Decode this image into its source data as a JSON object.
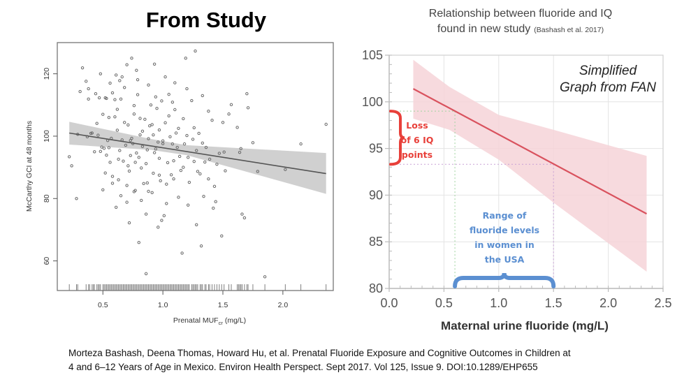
{
  "left_title": "From Study",
  "right_title": {
    "line1": "Relationship between fluoride and IQ",
    "line2_main": "found in new study",
    "line2_cite": "(Bashash et al. 2017)"
  },
  "annotations": {
    "simplified_line1": "Simplified",
    "simplified_line2": "Graph from FAN",
    "loss_lines": [
      "Loss",
      "of 6 IQ",
      "points"
    ],
    "range_lines": [
      "Range of",
      "fluoride levels",
      "in women in",
      "the USA"
    ]
  },
  "citation": {
    "line1": "Morteza Bashash, Deena Thomas, Howard Hu, et al. Prenatal Fluoride Exposure and Cognitive Outcomes in Children at",
    "line2": "4 and 6–12 Years of Age in Mexico. Environ Health Perspect. Sept 2017. Vol 125, Issue 9. DOI:10.1289/EHP655"
  },
  "colors": {
    "scatter_point": "#6b6b6b",
    "band_gray": "#c8c8c8",
    "fit_gray": "#555555",
    "band_pink": "#f6d3d8",
    "fit_red": "#d9525e",
    "loss_red": "#e8403a",
    "range_blue": "#5b8fd1"
  },
  "chart_data": [
    {
      "type": "scatter",
      "title": "From Study",
      "xlabel_main": "Prenatal MUF",
      "xlabel_sub": "cr",
      "xlabel_unit": "(mg/L)",
      "ylabel": "McCarthy GCI at 48 months",
      "xlim": [
        0.12,
        2.42
      ],
      "ylim": [
        50.5,
        130
      ],
      "xticks": [
        0.5,
        1.0,
        1.5,
        2.0
      ],
      "xtick_labels": [
        "0.5",
        "1.0",
        "1.5",
        "2.0"
      ],
      "yticks": [
        60,
        80,
        100,
        120
      ],
      "ytick_labels": [
        "60",
        "80",
        "100",
        "120"
      ],
      "grid": false,
      "fit": {
        "x": [
          0.22,
          2.36
        ],
        "y": [
          101.0,
          88.0
        ],
        "ci_lower": [
          97.3,
          81.5
        ],
        "ci_upper": [
          104.6,
          94.6
        ],
        "ci_x": [
          0.22,
          0.9,
          1.2,
          2.36
        ]
      },
      "fit_ci_lower": [
        97.3,
        95.6,
        93.9,
        81.5
      ],
      "fit_ci_upper": [
        104.6,
        99.1,
        97.1,
        94.6
      ],
      "points": [
        [
          0.22,
          93.4
        ],
        [
          0.24,
          90.5
        ],
        [
          0.28,
          80.0
        ],
        [
          0.29,
          100.6
        ],
        [
          0.31,
          114.3
        ],
        [
          0.33,
          121.9
        ],
        [
          0.36,
          117.6
        ],
        [
          0.37,
          99.8
        ],
        [
          0.38,
          111.9
        ],
        [
          0.38,
          115.2
        ],
        [
          0.4,
          100.9
        ],
        [
          0.41,
          101.0
        ],
        [
          0.43,
          95.0
        ],
        [
          0.44,
          113.6
        ],
        [
          0.46,
          100.3
        ],
        [
          0.47,
          112.3
        ],
        [
          0.48,
          95.1
        ],
        [
          0.49,
          96.5
        ],
        [
          0.5,
          107.0
        ],
        [
          0.51,
          96.1
        ],
        [
          0.52,
          112.3
        ],
        [
          0.53,
          112.1
        ],
        [
          0.53,
          93.9
        ],
        [
          0.54,
          98.6
        ],
        [
          0.55,
          96.3
        ],
        [
          0.56,
          91.6
        ],
        [
          0.57,
          99.3
        ],
        [
          0.58,
          113.9
        ],
        [
          0.58,
          87.1
        ],
        [
          0.6,
          111.7
        ],
        [
          0.61,
          119.6
        ],
        [
          0.62,
          108.6
        ],
        [
          0.63,
          86.0
        ],
        [
          0.63,
          92.6
        ],
        [
          0.64,
          117.8
        ],
        [
          0.65,
          111.9
        ],
        [
          0.66,
          119.0
        ],
        [
          0.67,
          92.0
        ],
        [
          0.68,
          104.4
        ],
        [
          0.69,
          97.1
        ],
        [
          0.7,
          122.9
        ],
        [
          0.7,
          84.2
        ],
        [
          0.71,
          90.5
        ],
        [
          0.72,
          72.2
        ],
        [
          0.73,
          98.6
        ],
        [
          0.73,
          93.8
        ],
        [
          0.74,
          125.0
        ],
        [
          0.75,
          97.6
        ],
        [
          0.76,
          107.1
        ],
        [
          0.77,
          82.6
        ],
        [
          0.77,
          91.6
        ],
        [
          0.78,
          121.1
        ],
        [
          0.78,
          94.6
        ],
        [
          0.79,
          118.1
        ],
        [
          0.8,
          65.9
        ],
        [
          0.81,
          105.7
        ],
        [
          0.81,
          100.4
        ],
        [
          0.82,
          89.8
        ],
        [
          0.83,
          96.7
        ],
        [
          0.84,
          84.8
        ],
        [
          0.85,
          105.4
        ],
        [
          0.86,
          55.9
        ],
        [
          0.86,
          91.2
        ],
        [
          0.87,
          95.6
        ],
        [
          0.88,
          82.3
        ],
        [
          0.89,
          103.3
        ],
        [
          0.9,
          110.0
        ],
        [
          0.91,
          103.7
        ],
        [
          0.92,
          88.1
        ],
        [
          0.93,
          123.1
        ],
        [
          0.93,
          94.7
        ],
        [
          0.94,
          95.9
        ],
        [
          0.95,
          108.9
        ],
        [
          0.96,
          70.8
        ],
        [
          0.97,
          102.0
        ],
        [
          0.97,
          87.5
        ],
        [
          0.98,
          85.7
        ],
        [
          0.99,
          111.3
        ],
        [
          1.0,
          98.5
        ],
        [
          1.0,
          97.6
        ],
        [
          1.01,
          74.5
        ],
        [
          1.02,
          104.3
        ],
        [
          1.03,
          78.4
        ],
        [
          1.04,
          91.5
        ],
        [
          1.05,
          106.5
        ],
        [
          1.05,
          113.4
        ],
        [
          1.07,
          87.6
        ],
        [
          1.08,
          97.5
        ],
        [
          1.09,
          92.1
        ],
        [
          1.1,
          108.5
        ],
        [
          1.12,
          96.4
        ],
        [
          1.13,
          102.5
        ],
        [
          1.14,
          93.5
        ],
        [
          1.15,
          89.0
        ],
        [
          1.16,
          62.5
        ],
        [
          1.17,
          105.6
        ],
        [
          1.18,
          97.5
        ],
        [
          1.19,
          125.0
        ],
        [
          1.2,
          100.2
        ],
        [
          1.21,
          93.2
        ],
        [
          1.22,
          85.2
        ],
        [
          1.24,
          111.4
        ],
        [
          1.25,
          99.0
        ],
        [
          1.26,
          91.9
        ],
        [
          1.27,
          127.3
        ],
        [
          1.28,
          95.4
        ],
        [
          1.29,
          88.7
        ],
        [
          1.31,
          87.9
        ],
        [
          1.32,
          64.8
        ],
        [
          1.33,
          97.8
        ],
        [
          1.35,
          91.7
        ],
        [
          1.36,
          96.4
        ],
        [
          1.38,
          86.3
        ],
        [
          1.39,
          92.6
        ],
        [
          1.41,
          105.1
        ],
        [
          1.43,
          83.9
        ],
        [
          1.45,
          91.0
        ],
        [
          1.47,
          94.5
        ],
        [
          1.49,
          68.0
        ],
        [
          1.51,
          94.9
        ],
        [
          1.52,
          88.9
        ],
        [
          1.55,
          107.1
        ],
        [
          1.57,
          110.1
        ],
        [
          1.62,
          102.8
        ],
        [
          1.64,
          94.8
        ],
        [
          1.65,
          96.0
        ],
        [
          1.66,
          75.0
        ],
        [
          1.68,
          73.8
        ],
        [
          1.7,
          113.6
        ],
        [
          1.71,
          109.1
        ],
        [
          1.75,
          97.9
        ],
        [
          1.79,
          88.7
        ],
        [
          1.85,
          54.9
        ],
        [
          2.02,
          89.3
        ],
        [
          2.15,
          97.5
        ],
        [
          2.36,
          103.8
        ],
        [
          0.62,
          101.9
        ],
        [
          0.66,
          98.8
        ],
        [
          0.71,
          103.6
        ],
        [
          0.74,
          99.3
        ],
        [
          0.83,
          101.6
        ],
        [
          0.88,
          99.2
        ],
        [
          0.92,
          100.4
        ],
        [
          0.96,
          98.1
        ],
        [
          1.06,
          99.8
        ],
        [
          1.11,
          101.0
        ],
        [
          1.26,
          102.7
        ],
        [
          1.3,
          100.9
        ],
        [
          0.52,
          88.2
        ],
        [
          0.58,
          84.9
        ],
        [
          0.65,
          80.9
        ],
        [
          0.7,
          78.8
        ],
        [
          0.76,
          82.2
        ],
        [
          0.82,
          79.4
        ],
        [
          0.91,
          81.9
        ],
        [
          1.03,
          84.6
        ],
        [
          1.13,
          80.4
        ],
        [
          1.21,
          77.9
        ],
        [
          1.34,
          80.7
        ],
        [
          1.44,
          79.0
        ],
        [
          0.48,
          120.0
        ],
        [
          0.56,
          117.0
        ],
        [
          0.68,
          115.6
        ],
        [
          0.79,
          113.3
        ],
        [
          0.88,
          116.4
        ],
        [
          1.02,
          119.0
        ],
        [
          1.1,
          117.1
        ],
        [
          1.2,
          115.2
        ],
        [
          1.33,
          113.0
        ],
        [
          0.45,
          104.1
        ],
        [
          0.6,
          106.2
        ],
        [
          0.76,
          109.8
        ],
        [
          0.94,
          112.6
        ],
        [
          1.08,
          110.9
        ],
        [
          1.38,
          108.0
        ],
        [
          1.5,
          104.4
        ],
        [
          0.5,
          82.8
        ],
        [
          0.61,
          77.2
        ],
        [
          0.86,
          75.0
        ],
        [
          0.99,
          73.0
        ],
        [
          1.28,
          71.6
        ],
        [
          1.42,
          76.9
        ],
        [
          0.55,
          106.0
        ],
        [
          0.64,
          95.4
        ],
        [
          0.72,
          88.8
        ],
        [
          0.8,
          93.2
        ],
        [
          0.87,
          85.0
        ],
        [
          0.97,
          92.9
        ],
        [
          1.09,
          86.3
        ],
        [
          1.17,
          90.0
        ]
      ],
      "rug": [
        0.22,
        0.28,
        0.29,
        0.36,
        0.38,
        0.39,
        0.41,
        0.42,
        0.43,
        0.45,
        0.46,
        0.47,
        0.48,
        0.5,
        0.51,
        0.52,
        0.53,
        0.54,
        0.55,
        0.56,
        0.57,
        0.58,
        0.59,
        0.6,
        0.61,
        0.62,
        0.63,
        0.64,
        0.65,
        0.66,
        0.67,
        0.68,
        0.69,
        0.7,
        0.71,
        0.72,
        0.73,
        0.74,
        0.75,
        0.76,
        0.77,
        0.78,
        0.79,
        0.8,
        0.81,
        0.82,
        0.83,
        0.84,
        0.85,
        0.86,
        0.87,
        0.88,
        0.89,
        0.9,
        0.91,
        0.92,
        0.93,
        0.94,
        0.95,
        0.96,
        0.97,
        0.98,
        0.99,
        1.0,
        1.01,
        1.02,
        1.03,
        1.04,
        1.05,
        1.06,
        1.07,
        1.08,
        1.09,
        1.1,
        1.11,
        1.12,
        1.13,
        1.14,
        1.15,
        1.16,
        1.17,
        1.18,
        1.19,
        1.2,
        1.21,
        1.22,
        1.24,
        1.25,
        1.26,
        1.27,
        1.28,
        1.29,
        1.31,
        1.32,
        1.33,
        1.35,
        1.36,
        1.38,
        1.39,
        1.41,
        1.43,
        1.45,
        1.47,
        1.49,
        1.51,
        1.55,
        1.57,
        1.62,
        1.63,
        1.64,
        1.65,
        1.66,
        1.68,
        1.7,
        1.71,
        1.75,
        1.85,
        2.02,
        2.15,
        2.36
      ]
    },
    {
      "type": "line",
      "title": "Relationship between fluoride and IQ found in new study (Bashash et al. 2017)",
      "xlabel": "Maternal urine fluoride (mg/L)",
      "ylabel": "",
      "xlim": [
        0.0,
        2.5
      ],
      "ylim": [
        80,
        105
      ],
      "xticks": [
        0.0,
        0.5,
        1.0,
        1.5,
        2.0,
        2.5
      ],
      "xtick_labels": [
        "0.0",
        "0.5",
        "1.0",
        "1.5",
        "2.0",
        "2.5"
      ],
      "yticks": [
        80,
        85,
        90,
        95,
        100,
        105
      ],
      "ytick_labels": [
        "80",
        "85",
        "90",
        "95",
        "100",
        "105"
      ],
      "grid": true,
      "series": [
        {
          "name": "IQ fit",
          "x": [
            0.22,
            2.35
          ],
          "y": [
            101.4,
            88.0
          ]
        }
      ],
      "ci_band": {
        "x": [
          0.22,
          0.55,
          1.0,
          1.5,
          2.35
        ],
        "upper": [
          104.5,
          101.6,
          98.6,
          97.0,
          94.2
        ],
        "lower": [
          98.2,
          97.0,
          93.8,
          89.2,
          81.8
        ]
      },
      "guides": {
        "low_x": 0.6,
        "low_y": 99.0,
        "high_x": 1.5,
        "high_y": 93.3
      },
      "annotation_loss_iq_points": 6,
      "annotation_range_mgL": [
        0.6,
        1.5
      ]
    }
  ]
}
